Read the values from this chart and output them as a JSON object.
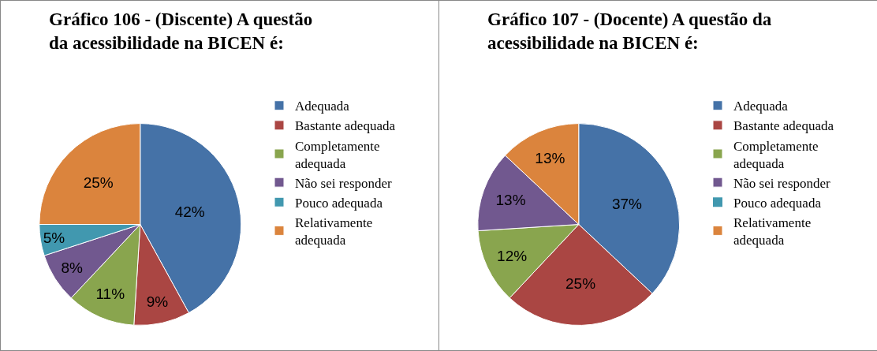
{
  "chart_data": [
    {
      "type": "pie",
      "title": "Gráfico 106 - (Discente) A questão da acessibilidade na BICEN é:",
      "categories": [
        "Adequada",
        "Bastante adequada",
        "Completamente adequada",
        "Não sei responder",
        "Pouco adequada",
        "Relativamente adequada"
      ],
      "values": [
        42,
        9,
        11,
        8,
        5,
        25
      ],
      "value_labels": [
        "42%",
        "9%",
        "11%",
        "8%",
        "5%",
        "25%"
      ],
      "colors": [
        "#4572a7",
        "#aa4643",
        "#89a54e",
        "#71588f",
        "#4198af",
        "#db843d"
      ],
      "legend": "right"
    },
    {
      "type": "pie",
      "title": "Gráfico 107 - (Docente) A questão da acessibilidade na BICEN é:",
      "categories": [
        "Adequada",
        "Bastante adequada",
        "Completamente adequada",
        "Não sei responder",
        "Pouco adequada",
        "Relativamente adequada"
      ],
      "values": [
        37,
        25,
        12,
        13,
        0,
        13
      ],
      "value_labels": [
        "37%",
        "25%",
        "12%",
        "13%",
        null,
        "13%"
      ],
      "colors": [
        "#4572a7",
        "#aa4643",
        "#89a54e",
        "#71588f",
        "#4198af",
        "#db843d"
      ],
      "legend": "right"
    }
  ]
}
